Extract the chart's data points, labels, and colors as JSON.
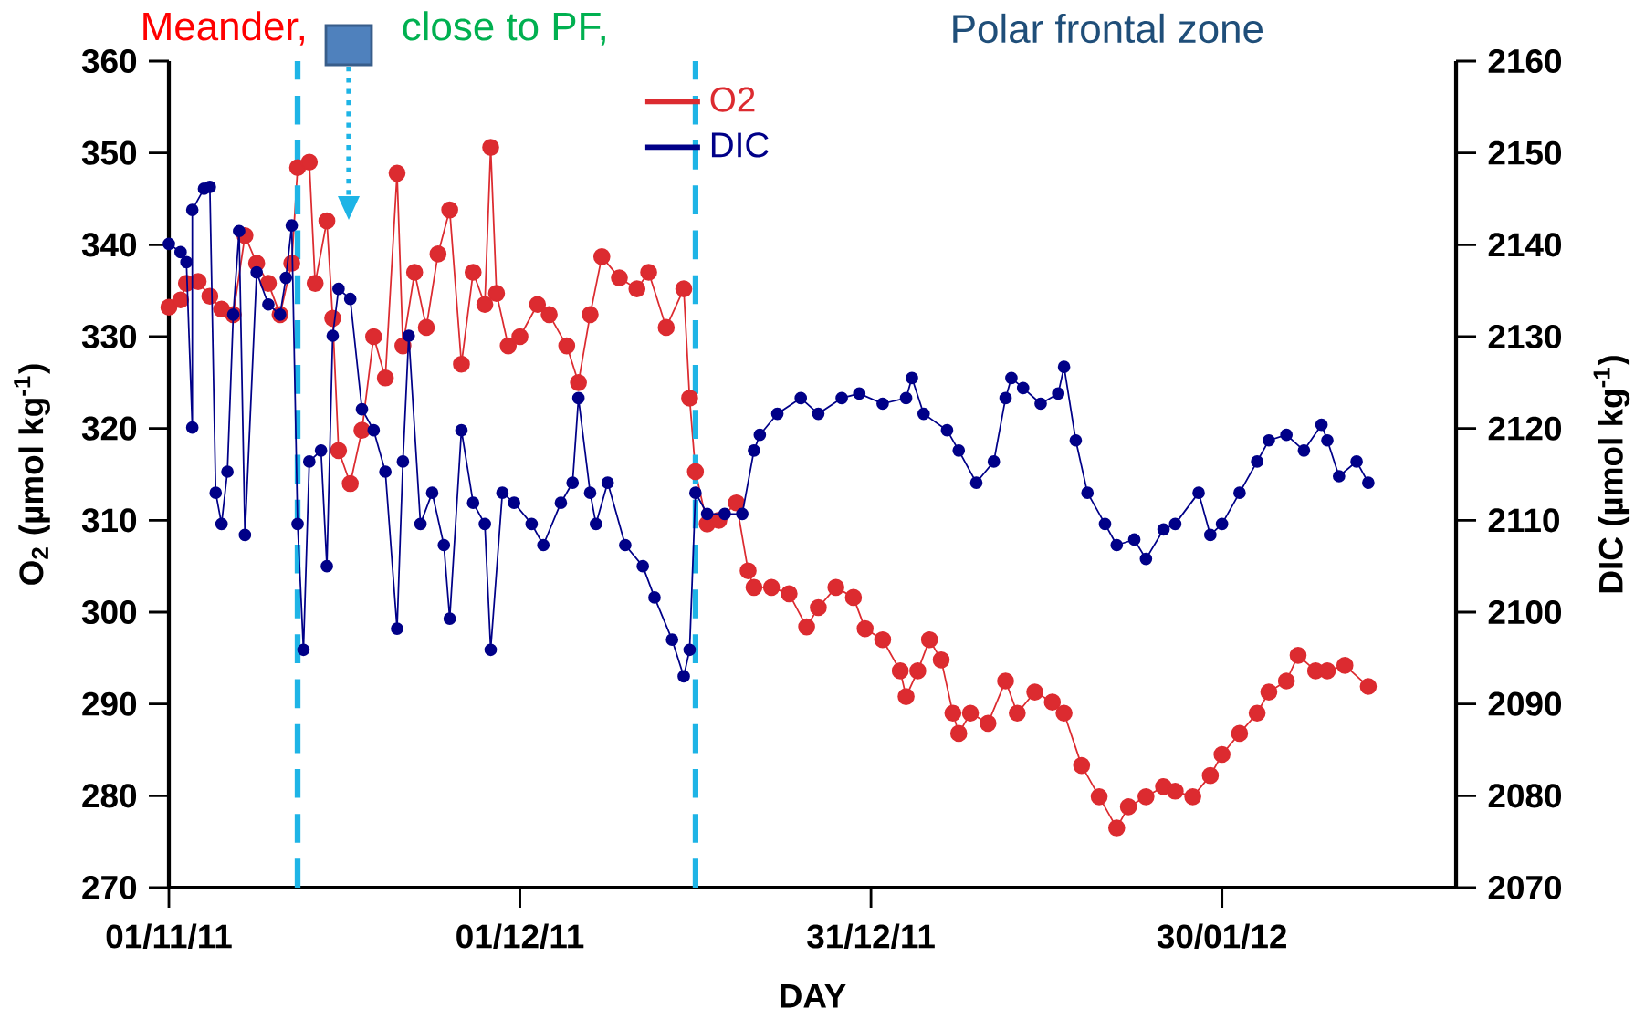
{
  "chart_data": {
    "type": "line",
    "annotations": [
      "Meander,",
      "close to PF,",
      "Polar frontal zone"
    ],
    "xlabel": "DAY",
    "ylabel": "O$_{2}$ (µmol kg$^{-1}$)",
    "y2label": "DIC (µmol kg$^{-1}$)",
    "xlim": [
      "2011-11-01",
      "2012-02-19"
    ],
    "xticks": [
      {
        "value": "2011-11-01",
        "label": "01/11/11"
      },
      {
        "value": "2011-12-01",
        "label": "01/12/11"
      },
      {
        "value": "2011-12-31",
        "label": "31/12/11"
      },
      {
        "value": "2012-01-30",
        "label": "30/01/12"
      }
    ],
    "ylim": [
      270,
      360
    ],
    "yticks": [
      270,
      280,
      290,
      300,
      310,
      320,
      330,
      340,
      350,
      360
    ],
    "y2lim": [
      2070,
      2160
    ],
    "y2ticks": [
      2070,
      2080,
      2090,
      2100,
      2110,
      2120,
      2130,
      2140,
      2150,
      2160
    ],
    "legend": "top",
    "marker": "circle",
    "ref_lines": [
      {
        "axis": "x",
        "value": "2011-11-12",
        "color": "#1eb4e6",
        "line_style": "dashed"
      },
      {
        "axis": "x",
        "value": "2011-12-16",
        "color": "#1eb4e6",
        "line_style": "dashed"
      }
    ],
    "series": [
      {
        "name": "O2",
        "color": "#dc2b30",
        "x": [
          "2011-11-01",
          "2011-11-02",
          "2011-11-02T12:00",
          "2011-11-03T12:00",
          "2011-11-04T12:00",
          "2011-11-05T12:00",
          "2011-11-06T12:00",
          "2011-11-07T12:00",
          "2011-11-08T12:00",
          "2011-11-09T12:00",
          "2011-11-10T12:00",
          "2011-11-11T12:00",
          "2011-11-12",
          "2011-11-13",
          "2011-11-13T12:00",
          "2011-11-14T12:00",
          "2011-11-15",
          "2011-11-15T12:00",
          "2011-11-16T12:00",
          "2011-11-17T12:00",
          "2011-11-18T12:00",
          "2011-11-19T12:00",
          "2011-11-20T12:00",
          "2011-11-21",
          "2011-11-22",
          "2011-11-23",
          "2011-11-24",
          "2011-11-25",
          "2011-11-26",
          "2011-11-27",
          "2011-11-28",
          "2011-11-28T12:00",
          "2011-11-29",
          "2011-11-30",
          "2011-12-01",
          "2011-12-02T12:00",
          "2011-12-03T12:00",
          "2011-12-05",
          "2011-12-06",
          "2011-12-07",
          "2011-12-08",
          "2011-12-09T12:00",
          "2011-12-11",
          "2011-12-12",
          "2011-12-13T12:00",
          "2011-12-15",
          "2011-12-15T12:00",
          "2011-12-16",
          "2011-12-17",
          "2011-12-18",
          "2011-12-19T12:00",
          "2011-12-20T12:00",
          "2011-12-21",
          "2011-12-22T12:00",
          "2011-12-24",
          "2011-12-25T12:00",
          "2011-12-26T12:00",
          "2011-12-28",
          "2011-12-29T12:00",
          "2011-12-30T12:00",
          "2012-01-01",
          "2012-01-02T12:00",
          "2012-01-03",
          "2012-01-04",
          "2012-01-05",
          "2012-01-06",
          "2012-01-07",
          "2012-01-07T12:00",
          "2012-01-08T12:00",
          "2012-01-10",
          "2012-01-11T12:00",
          "2012-01-12T12:00",
          "2012-01-14",
          "2012-01-15T12:00",
          "2012-01-16T12:00",
          "2012-01-18",
          "2012-01-19T12:00",
          "2012-01-21",
          "2012-01-22",
          "2012-01-23T12:00",
          "2012-01-25",
          "2012-01-26",
          "2012-01-27T12:00",
          "2012-01-29",
          "2012-01-30",
          "2012-01-31T12:00",
          "2012-02-02",
          "2012-02-03",
          "2012-02-04T12:00",
          "2012-02-05T12:00",
          "2012-02-07",
          "2012-02-08",
          "2012-02-09T12:00",
          "2012-02-11T12:00"
        ],
        "values": [
          333.2,
          334,
          335.8,
          336,
          334.4,
          333,
          332.4,
          341,
          338,
          335.8,
          332.4,
          338,
          348.4,
          349,
          335.8,
          342.6,
          332,
          317.6,
          314,
          319.8,
          330,
          325.5,
          347.8,
          329,
          337,
          331,
          339,
          343.8,
          327,
          337,
          333.5,
          350.6,
          334.7,
          329,
          330,
          333.5,
          332.4,
          329,
          325,
          332.4,
          338.7,
          336.4,
          335.2,
          337,
          331,
          335.2,
          323.3,
          315.3,
          309.6,
          310,
          311.9,
          304.5,
          302.7,
          302.7,
          302,
          298.4,
          300.5,
          302.7,
          301.6,
          298.2,
          297,
          293.6,
          290.8,
          293.6,
          297,
          294.8,
          289,
          286.8,
          289,
          287.9,
          292.5,
          289,
          291.3,
          290.2,
          289,
          283.3,
          279.9,
          276.5,
          278.8,
          279.9,
          281,
          280.5,
          279.9,
          282.2,
          284.5,
          286.8,
          289,
          291.3,
          292.5,
          295.3,
          293.6,
          293.6,
          294.2,
          291.9
        ]
      },
      {
        "name": "DIC",
        "color": "#000088",
        "axis": "y2",
        "x": [
          "2011-11-01",
          "2011-11-02",
          "2011-11-02T12:00",
          "2011-11-03",
          "2011-11-03",
          "2011-11-04",
          "2011-11-04T12:00",
          "2011-11-05",
          "2011-11-05T12:00",
          "2011-11-06",
          "2011-11-06T12:00",
          "2011-11-07",
          "2011-11-07T12:00",
          "2011-11-08T12:00",
          "2011-11-09T12:00",
          "2011-11-10T12:00",
          "2011-11-11",
          "2011-11-11T12:00",
          "2011-11-12",
          "2011-11-12T12:00",
          "2011-11-13",
          "2011-11-14",
          "2011-11-14T12:00",
          "2011-11-15",
          "2011-11-15T12:00",
          "2011-11-16T12:00",
          "2011-11-17T12:00",
          "2011-11-18T12:00",
          "2011-11-19T12:00",
          "2011-11-20T12:00",
          "2011-11-21",
          "2011-11-21T12:00",
          "2011-11-22T12:00",
          "2011-11-23T12:00",
          "2011-11-24T12:00",
          "2011-11-25",
          "2011-11-26",
          "2011-11-27",
          "2011-11-28",
          "2011-11-28T12:00",
          "2011-11-29T12:00",
          "2011-11-30T12:00",
          "2011-12-02",
          "2011-12-03",
          "2011-12-04T12:00",
          "2011-12-05T12:00",
          "2011-12-06",
          "2011-12-07",
          "2011-12-07T12:00",
          "2011-12-08T12:00",
          "2011-12-10",
          "2011-12-11T12:00",
          "2011-12-12T12:00",
          "2011-12-14",
          "2011-12-15",
          "2011-12-15T12:00",
          "2011-12-16",
          "2011-12-17",
          "2011-12-18T12:00",
          "2011-12-20",
          "2011-12-21",
          "2011-12-21T12:00",
          "2011-12-23",
          "2011-12-25",
          "2011-12-26T12:00",
          "2011-12-28T12:00",
          "2011-12-30",
          "2012-01-01",
          "2012-01-03",
          "2012-01-03T12:00",
          "2012-01-04T12:00",
          "2012-01-06T12:00",
          "2012-01-07T12:00",
          "2012-01-09",
          "2012-01-10T12:00",
          "2012-01-11T12:00",
          "2012-01-12",
          "2012-01-13",
          "2012-01-14T12:00",
          "2012-01-16",
          "2012-01-16T12:00",
          "2012-01-17T12:00",
          "2012-01-18T12:00",
          "2012-01-20",
          "2012-01-21",
          "2012-01-22T12:00",
          "2012-01-23T12:00",
          "2012-01-25",
          "2012-01-26",
          "2012-01-28",
          "2012-01-29",
          "2012-01-30",
          "2012-01-31T12:00",
          "2012-02-02",
          "2012-02-03",
          "2012-02-04T12:00",
          "2012-02-06",
          "2012-02-07T12:00",
          "2012-02-08",
          "2012-02-09",
          "2012-02-10T12:00",
          "2012-02-11T12:00"
        ],
        "values": [
          2140.1,
          2139.2,
          2138.1,
          2120.1,
          2143.8,
          2146.1,
          2146.3,
          2113,
          2109.6,
          2115.3,
          2132.4,
          2141.5,
          2108.4,
          2137,
          2133.5,
          2132.4,
          2136.4,
          2142.1,
          2109.6,
          2095.9,
          2116.4,
          2117.6,
          2105,
          2130.1,
          2135.2,
          2134.1,
          2122.1,
          2119.8,
          2115.3,
          2098.2,
          2116.4,
          2130.1,
          2109.6,
          2113,
          2107.3,
          2099.3,
          2119.8,
          2111.9,
          2109.6,
          2095.9,
          2113,
          2111.9,
          2109.6,
          2107.3,
          2111.9,
          2114.1,
          2123.3,
          2113,
          2109.6,
          2114.1,
          2107.3,
          2105,
          2101.6,
          2097,
          2093,
          2095.9,
          2113,
          2110.7,
          2110.7,
          2110.7,
          2117.6,
          2119.3,
          2121.6,
          2123.3,
          2121.6,
          2123.3,
          2123.8,
          2122.7,
          2123.3,
          2125.5,
          2121.6,
          2119.8,
          2117.6,
          2114.1,
          2116.4,
          2123.3,
          2125.5,
          2124.4,
          2122.7,
          2123.8,
          2126.7,
          2118.7,
          2113,
          2109.6,
          2107.3,
          2107.9,
          2105.8,
          2109,
          2109.6,
          2113,
          2108.4,
          2109.6,
          2113,
          2116.4,
          2118.7,
          2119.3,
          2117.6,
          2120.4,
          2118.7,
          2114.8,
          2116.4,
          2114.1
        ]
      }
    ]
  }
}
